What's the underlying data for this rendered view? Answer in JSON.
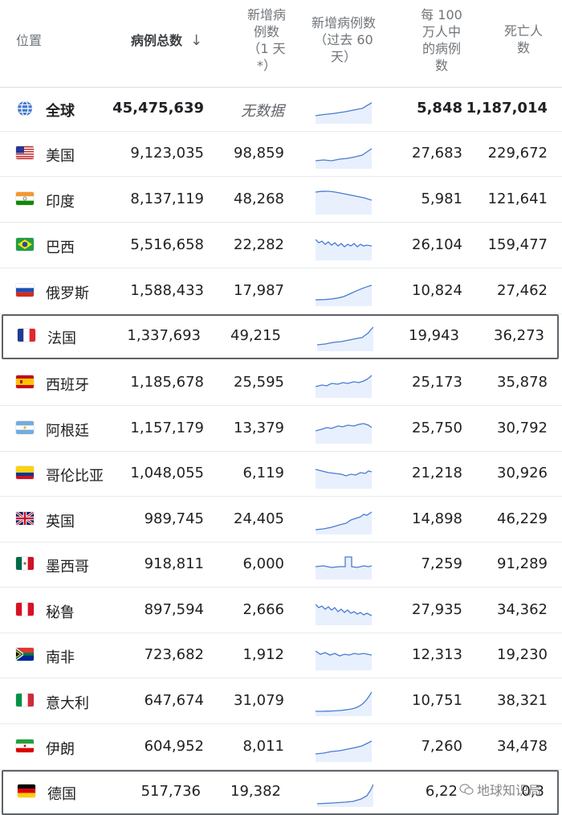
{
  "header": {
    "location": "位置",
    "total_cases": "病例总数",
    "sort_arrow": "↓",
    "new_cases": "新增病\n例数\n（1 天\n*）",
    "new_cases_trend": "新增病例数\n（过去 60\n天）",
    "per_million": "每 100\n万人中\n的病例\n数",
    "deaths": "死亡人\n数"
  },
  "global": {
    "name": "全球",
    "icon": "globe-icon",
    "total": "45,475,639",
    "new": "无数据",
    "per_million": "5,848",
    "deaths": "1,187,014"
  },
  "rows": [
    {
      "name": "美国",
      "flag": "us",
      "total": "9,123,035",
      "new": "98,859",
      "per_million": "27,683",
      "deaths": "229,672"
    },
    {
      "name": "印度",
      "flag": "in",
      "total": "8,137,119",
      "new": "48,268",
      "per_million": "5,981",
      "deaths": "121,641"
    },
    {
      "name": "巴西",
      "flag": "br",
      "total": "5,516,658",
      "new": "22,282",
      "per_million": "26,104",
      "deaths": "159,477"
    },
    {
      "name": "俄罗斯",
      "flag": "ru",
      "total": "1,588,433",
      "new": "17,987",
      "per_million": "10,824",
      "deaths": "27,462"
    },
    {
      "name": "法国",
      "flag": "fr",
      "total": "1,337,693",
      "new": "49,215",
      "per_million": "19,943",
      "deaths": "36,273",
      "highlighted": true
    },
    {
      "name": "西班牙",
      "flag": "es",
      "total": "1,185,678",
      "new": "25,595",
      "per_million": "25,173",
      "deaths": "35,878"
    },
    {
      "name": "阿根廷",
      "flag": "ar",
      "total": "1,157,179",
      "new": "13,379",
      "per_million": "25,750",
      "deaths": "30,792"
    },
    {
      "name": "哥伦比亚",
      "flag": "co",
      "total": "1,048,055",
      "new": "6,119",
      "per_million": "21,218",
      "deaths": "30,926"
    },
    {
      "name": "英国",
      "flag": "gb",
      "total": "989,745",
      "new": "24,405",
      "per_million": "14,898",
      "deaths": "46,229"
    },
    {
      "name": "墨西哥",
      "flag": "mx",
      "total": "918,811",
      "new": "6,000",
      "per_million": "7,259",
      "deaths": "91,289"
    },
    {
      "name": "秘鲁",
      "flag": "pe",
      "total": "897,594",
      "new": "2,666",
      "per_million": "27,935",
      "deaths": "34,362"
    },
    {
      "name": "南非",
      "flag": "za",
      "total": "723,682",
      "new": "1,912",
      "per_million": "12,313",
      "deaths": "19,230"
    },
    {
      "name": "意大利",
      "flag": "it",
      "total": "647,674",
      "new": "31,079",
      "per_million": "10,751",
      "deaths": "38,321"
    },
    {
      "name": "伊朗",
      "flag": "ir",
      "total": "604,952",
      "new": "8,011",
      "per_million": "7,260",
      "deaths": "34,478"
    },
    {
      "name": "德国",
      "flag": "de",
      "total": "517,736",
      "new": "19,382",
      "per_million": "6,22",
      "deaths": "0,3",
      "highlighted": true
    }
  ],
  "watermark": {
    "text": "地球知识局",
    "icon": "wechat-icon"
  },
  "colors": {
    "sparkline": "#4a7bd0",
    "sparkline_fill": "#e8f0fe",
    "highlight_border": "#5f6368"
  }
}
